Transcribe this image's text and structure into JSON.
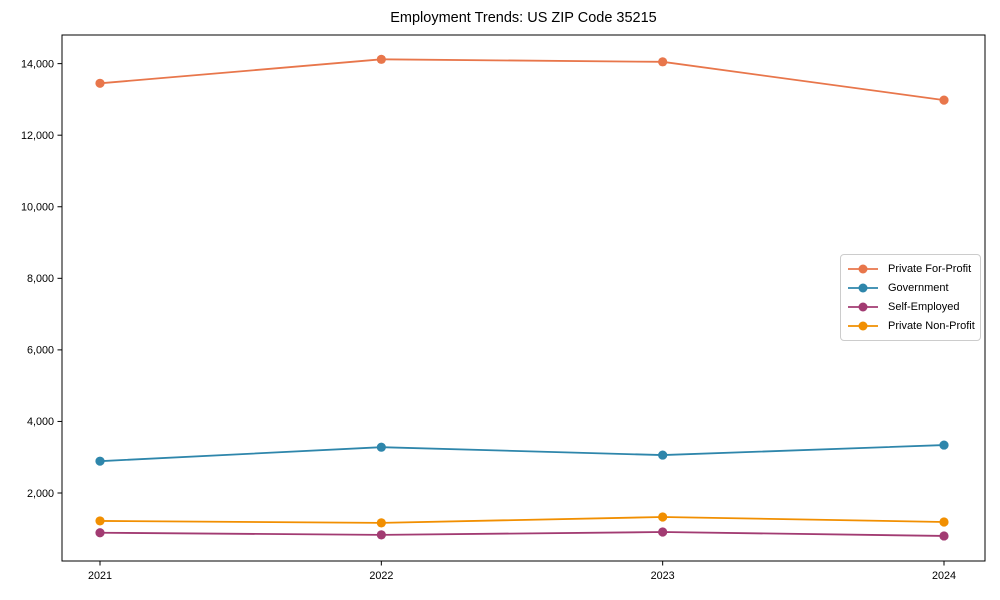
{
  "chart_data": {
    "type": "line",
    "title": "Employment Trends: US ZIP Code 35215",
    "xlabel": "",
    "ylabel": "",
    "categories": [
      "2021",
      "2022",
      "2023",
      "2024"
    ],
    "yticks": [
      2000,
      4000,
      6000,
      8000,
      10000,
      12000,
      14000
    ],
    "ytick_labels": [
      "2,000",
      "4,000",
      "6,000",
      "8,000",
      "10,000",
      "12,000",
      "14,000"
    ],
    "ylim": [
      100,
      14800
    ],
    "grid": false,
    "legend_position": "center-right",
    "marker_style": "circle",
    "series": [
      {
        "name": "Private For-Profit",
        "color": "#E8764B",
        "values": [
          13450,
          14120,
          14050,
          12980
        ]
      },
      {
        "name": "Government",
        "color": "#2E86AB",
        "values": [
          2890,
          3280,
          3060,
          3340
        ]
      },
      {
        "name": "Self-Employed",
        "color": "#A23B72",
        "values": [
          890,
          830,
          910,
          800
        ]
      },
      {
        "name": "Private Non-Profit",
        "color": "#F18F01",
        "values": [
          1220,
          1165,
          1330,
          1190
        ]
      }
    ]
  },
  "style": {
    "axis_color": "#000000",
    "tick_label_color": "#000000",
    "background": "#ffffff"
  }
}
